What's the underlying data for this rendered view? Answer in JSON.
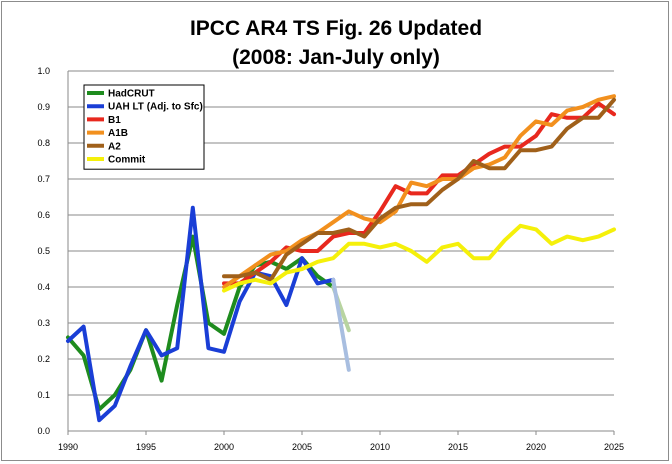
{
  "title": {
    "line1": "IPCC AR4 TS Fig. 26 Updated",
    "line2": "(2008: Jan-July only)"
  },
  "chart_data": {
    "type": "line",
    "title": "IPCC AR4 TS Fig. 26 Updated (2008: Jan-July only)",
    "xlim": [
      1990,
      2025
    ],
    "ylim": [
      0.0,
      1.0
    ],
    "x_ticks": [
      1990,
      1995,
      2000,
      2005,
      2010,
      2015,
      2020,
      2025
    ],
    "y_ticks": [
      "0.0",
      "0.1",
      "0.2",
      "0.3",
      "0.4",
      "0.5",
      "0.6",
      "0.7",
      "0.8",
      "0.9",
      "1.0"
    ],
    "grid": "horizontal",
    "legend_position": "top-left",
    "series": [
      {
        "name": "HadCRUT",
        "color": "#1e8c1e",
        "x": [
          1990,
          1991,
          1992,
          1993,
          1994,
          1995,
          1996,
          1997,
          1998,
          1999,
          2000,
          2001,
          2002,
          2003,
          2004,
          2005,
          2006,
          2007
        ],
        "y": [
          0.26,
          0.21,
          0.06,
          0.1,
          0.17,
          0.28,
          0.14,
          0.35,
          0.54,
          0.3,
          0.27,
          0.4,
          0.46,
          0.47,
          0.45,
          0.48,
          0.43,
          0.4
        ],
        "extension": {
          "x": [
            2007,
            2008
          ],
          "y": [
            0.4,
            0.28
          ],
          "color": "#b8d4a0"
        }
      },
      {
        "name": "UAH LT (Adj. to Sfc)",
        "color": "#1a3ed6",
        "x": [
          1990,
          1991,
          1992,
          1993,
          1994,
          1995,
          1996,
          1997,
          1998,
          1999,
          2000,
          2001,
          2002,
          2003,
          2004,
          2005,
          2006,
          2007
        ],
        "y": [
          0.25,
          0.29,
          0.03,
          0.07,
          0.18,
          0.28,
          0.21,
          0.23,
          0.62,
          0.23,
          0.22,
          0.36,
          0.44,
          0.43,
          0.35,
          0.48,
          0.41,
          0.42
        ],
        "extension": {
          "x": [
            2007,
            2008
          ],
          "y": [
            0.42,
            0.17
          ],
          "color": "#a8bee0"
        }
      },
      {
        "name": "B1",
        "color": "#e8281e",
        "x": [
          2000,
          2001,
          2002,
          2003,
          2004,
          2005,
          2006,
          2007,
          2008,
          2009,
          2010,
          2011,
          2012,
          2013,
          2014,
          2015,
          2016,
          2017,
          2018,
          2019,
          2020,
          2021,
          2022,
          2023,
          2024,
          2025
        ],
        "y": [
          0.41,
          0.41,
          0.44,
          0.47,
          0.51,
          0.5,
          0.5,
          0.54,
          0.55,
          0.55,
          0.61,
          0.68,
          0.66,
          0.66,
          0.71,
          0.71,
          0.74,
          0.77,
          0.79,
          0.79,
          0.82,
          0.88,
          0.87,
          0.87,
          0.91,
          0.88
        ]
      },
      {
        "name": "A1B",
        "color": "#f2901e",
        "x": [
          2000,
          2001,
          2002,
          2003,
          2004,
          2005,
          2006,
          2007,
          2008,
          2009,
          2010,
          2011,
          2012,
          2013,
          2014,
          2015,
          2016,
          2017,
          2018,
          2019,
          2020,
          2021,
          2022,
          2023,
          2024,
          2025
        ],
        "y": [
          0.4,
          0.43,
          0.46,
          0.49,
          0.5,
          0.53,
          0.55,
          0.58,
          0.61,
          0.59,
          0.58,
          0.61,
          0.69,
          0.68,
          0.7,
          0.7,
          0.73,
          0.74,
          0.76,
          0.82,
          0.86,
          0.85,
          0.89,
          0.9,
          0.92,
          0.93
        ]
      },
      {
        "name": "A2",
        "color": "#a0601a",
        "x": [
          2000,
          2001,
          2002,
          2003,
          2004,
          2005,
          2006,
          2007,
          2008,
          2009,
          2010,
          2011,
          2012,
          2013,
          2014,
          2015,
          2016,
          2017,
          2018,
          2019,
          2020,
          2021,
          2022,
          2023,
          2024,
          2025
        ],
        "y": [
          0.43,
          0.43,
          0.44,
          0.42,
          0.49,
          0.52,
          0.55,
          0.55,
          0.56,
          0.54,
          0.59,
          0.62,
          0.63,
          0.63,
          0.67,
          0.7,
          0.75,
          0.73,
          0.73,
          0.78,
          0.78,
          0.79,
          0.84,
          0.87,
          0.87,
          0.92
        ]
      },
      {
        "name": "Commit",
        "color": "#f5f00a",
        "x": [
          2000,
          2001,
          2002,
          2003,
          2004,
          2005,
          2006,
          2007,
          2008,
          2009,
          2010,
          2011,
          2012,
          2013,
          2014,
          2015,
          2016,
          2017,
          2018,
          2019,
          2020,
          2021,
          2022,
          2023,
          2024,
          2025
        ],
        "y": [
          0.39,
          0.41,
          0.42,
          0.41,
          0.44,
          0.45,
          0.47,
          0.48,
          0.52,
          0.52,
          0.51,
          0.52,
          0.5,
          0.47,
          0.51,
          0.52,
          0.48,
          0.48,
          0.53,
          0.57,
          0.56,
          0.52,
          0.54,
          0.53,
          0.54,
          0.56
        ]
      }
    ]
  }
}
